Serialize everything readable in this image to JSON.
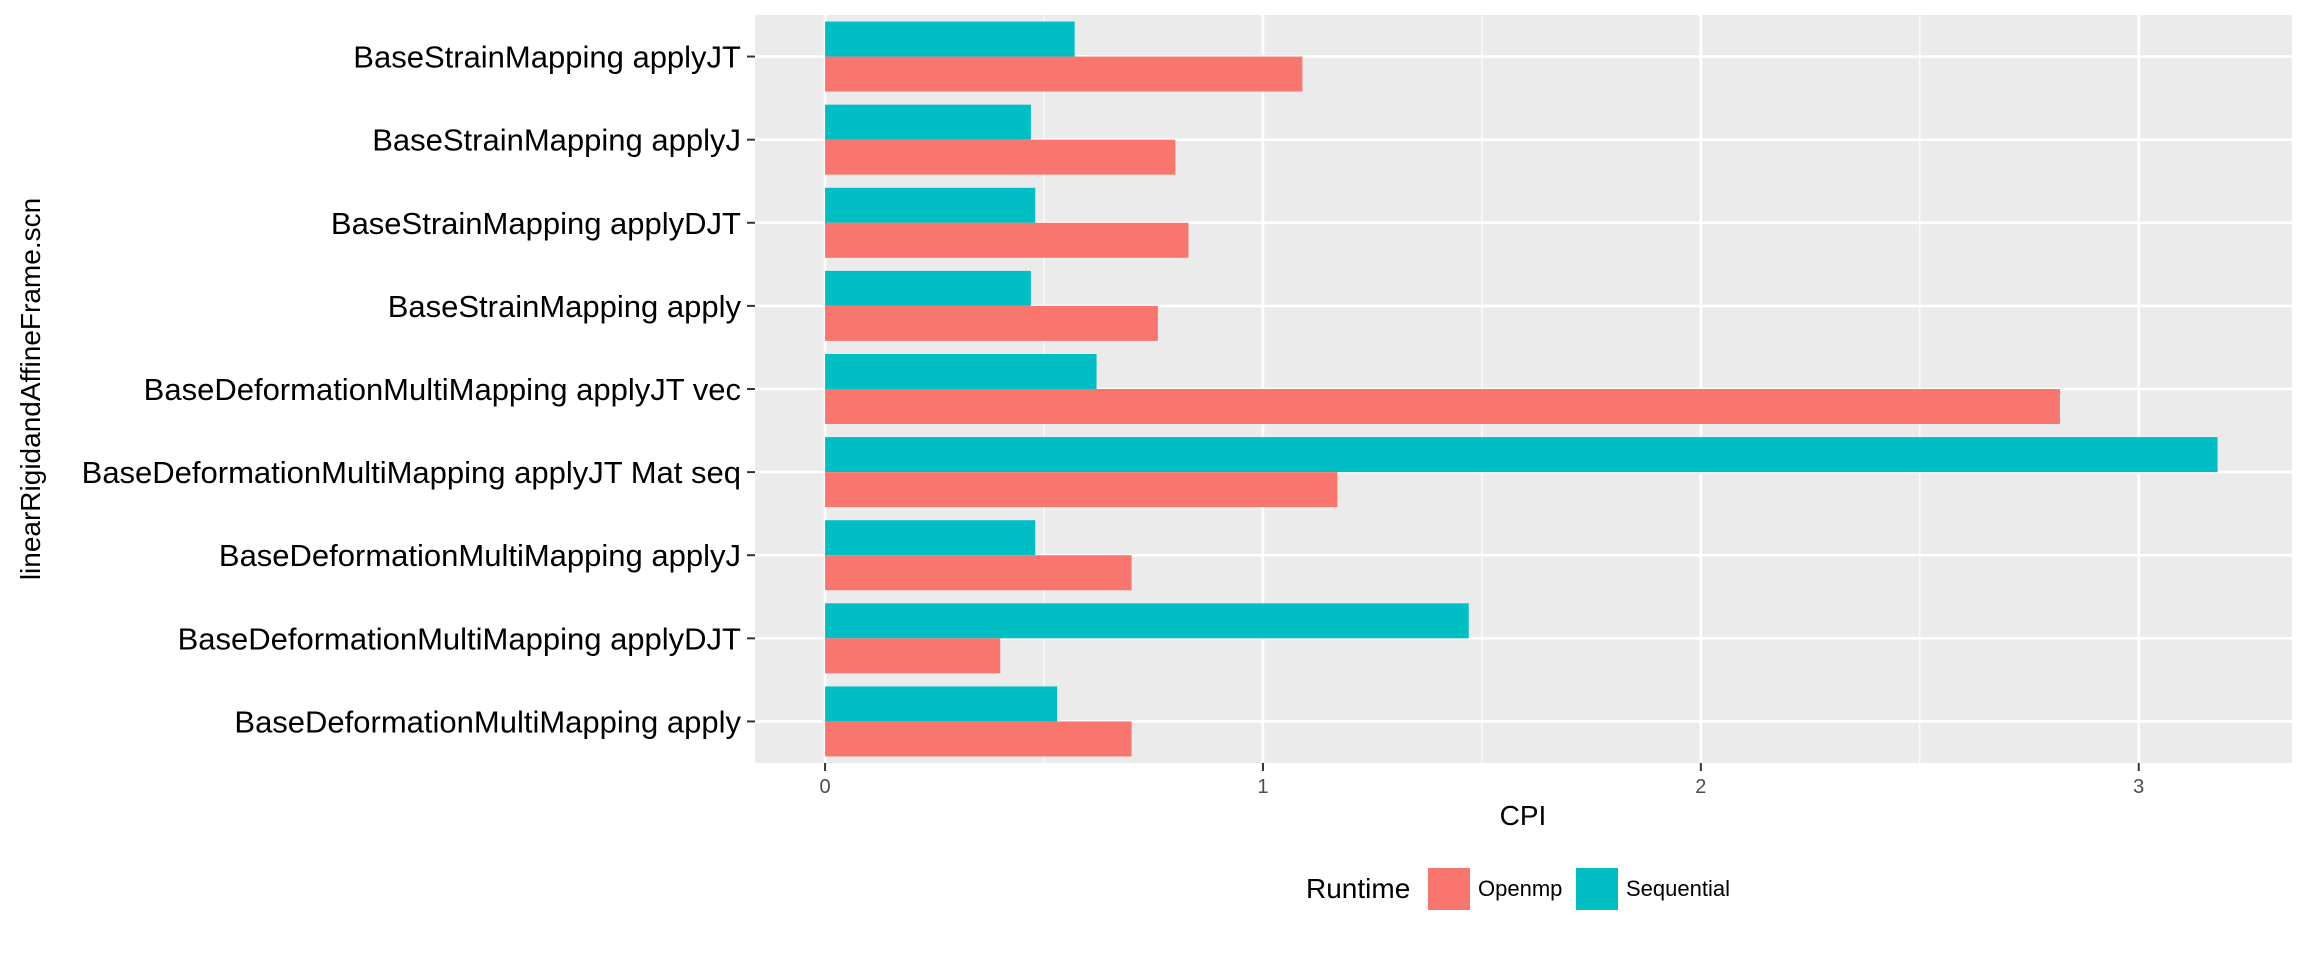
{
  "chart_data": {
    "type": "bar",
    "orientation": "horizontal",
    "categories": [
      "BaseStrainMapping applyJT",
      "BaseStrainMapping applyJ",
      "BaseStrainMapping applyDJT",
      "BaseStrainMapping apply",
      "BaseDeformationMultiMapping applyJT vec",
      "BaseDeformationMultiMapping applyJT Mat seq",
      "BaseDeformationMultiMapping applyJ",
      "BaseDeformationMultiMapping applyDJT",
      "BaseDeformationMultiMapping apply"
    ],
    "series": [
      {
        "name": "Openmp",
        "color": "#F8766D",
        "values": [
          1.09,
          0.8,
          0.83,
          0.76,
          2.82,
          1.17,
          0.7,
          0.4,
          0.7
        ]
      },
      {
        "name": "Sequential",
        "color": "#00BFC4",
        "values": [
          0.57,
          0.47,
          0.48,
          0.47,
          0.62,
          3.18,
          0.48,
          1.47,
          0.53
        ]
      }
    ],
    "xlabel": "CPI",
    "ylabel": "linearRigidandAffineFrame.scn",
    "xlim": [
      -0.16,
      3.35
    ],
    "xticks": [
      "0",
      "1",
      "2",
      "3"
    ],
    "grid": true,
    "legend": {
      "title": "Runtime",
      "position": "bottom"
    },
    "panel_color": "#EBEBEB",
    "grid_color": "#FFFFFF"
  }
}
